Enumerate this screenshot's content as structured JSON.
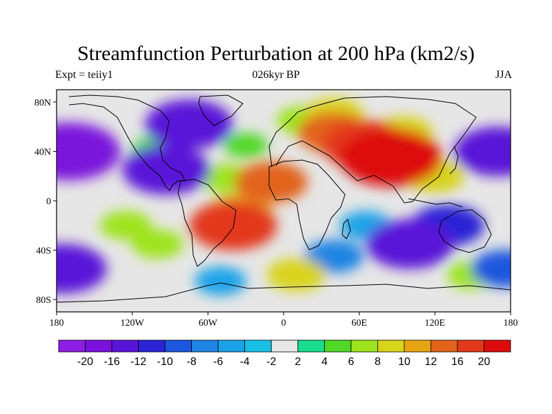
{
  "title": "Streamfunction Perturbation at 200 hPa (km2/s)",
  "subtitle_left": "Expt = teiiy1",
  "subtitle_center": "026kyr BP",
  "subtitle_right": "JJA",
  "map": {
    "projection": "cylindrical equidistant",
    "lon_ticks": [
      "180",
      "120W",
      "60W",
      "0",
      "60E",
      "120E",
      "180"
    ],
    "lat_ticks": [
      "80N",
      "40N",
      "0",
      "40S",
      "80S"
    ],
    "background_color": "#e6e6e6",
    "frame": "black border",
    "coastlines": true
  },
  "colorbar": {
    "labels": [
      "-20",
      "-16",
      "-12",
      "-10",
      "-8",
      "-6",
      "-4",
      "-2",
      "2",
      "4",
      "6",
      "8",
      "10",
      "12",
      "16",
      "20"
    ],
    "colors": [
      "#8c1ee6",
      "#7a12dc",
      "#5a14d8",
      "#2c24d6",
      "#1b57df",
      "#1f84e3",
      "#1aa3e8",
      "#19c0e6",
      "#e6e6e6",
      "#19dc8f",
      "#50d828",
      "#9ee41e",
      "#d8d41a",
      "#e6a414",
      "#e2641a",
      "#e3381a",
      "#dd0c0c"
    ]
  },
  "chart_data": {
    "type": "heatmap",
    "variable": "Streamfunction Perturbation at 200 hPa",
    "units": "km2/s",
    "level_hPa": 200,
    "season": "JJA",
    "experiment": "teiiy1",
    "time": "026kyr BP",
    "contour_levels": [
      -20,
      -16,
      -12,
      -10,
      -8,
      -6,
      -4,
      -2,
      2,
      4,
      6,
      8,
      10,
      12,
      16,
      20
    ],
    "lon_range": [
      -180,
      180
    ],
    "lat_range": [
      -90,
      90
    ],
    "features": [
      {
        "lon": 85,
        "lat": 35,
        "value": 20
      },
      {
        "lon": 65,
        "lat": 45,
        "value": 16
      },
      {
        "lon": 40,
        "lat": 55,
        "value": 12
      },
      {
        "lon": 95,
        "lat": 55,
        "value": 8
      },
      {
        "lon": 40,
        "lat": 70,
        "value": 8
      },
      {
        "lon": 15,
        "lat": 65,
        "value": 6
      },
      {
        "lon": -75,
        "lat": 62,
        "value": -16
      },
      {
        "lon": -93,
        "lat": 25,
        "value": -16
      },
      {
        "lon": -170,
        "lat": 40,
        "value": -20
      },
      {
        "lon": 170,
        "lat": 40,
        "value": -16
      },
      {
        "lon": -102,
        "lat": 42,
        "value": 4
      },
      {
        "lon": -30,
        "lat": 45,
        "value": 4
      },
      {
        "lon": -10,
        "lat": 15,
        "value": 12
      },
      {
        "lon": -45,
        "lat": 18,
        "value": 6
      },
      {
        "lon": -40,
        "lat": -20,
        "value": 16
      },
      {
        "lon": -35,
        "lat": -10,
        "value": 10
      },
      {
        "lon": -125,
        "lat": -20,
        "value": 6
      },
      {
        "lon": -100,
        "lat": -35,
        "value": 6
      },
      {
        "lon": 100,
        "lat": -35,
        "value": -16
      },
      {
        "lon": 130,
        "lat": -20,
        "value": -12
      },
      {
        "lon": 65,
        "lat": -20,
        "value": -6
      },
      {
        "lon": 40,
        "lat": -45,
        "value": -8
      },
      {
        "lon": -175,
        "lat": -55,
        "value": -16
      },
      {
        "lon": 175,
        "lat": -55,
        "value": -10
      },
      {
        "lon": 10,
        "lat": -60,
        "value": 8
      },
      {
        "lon": 150,
        "lat": -60,
        "value": 6
      },
      {
        "lon": -50,
        "lat": -65,
        "value": -6
      },
      {
        "lon": 120,
        "lat": 20,
        "value": 8
      }
    ]
  }
}
